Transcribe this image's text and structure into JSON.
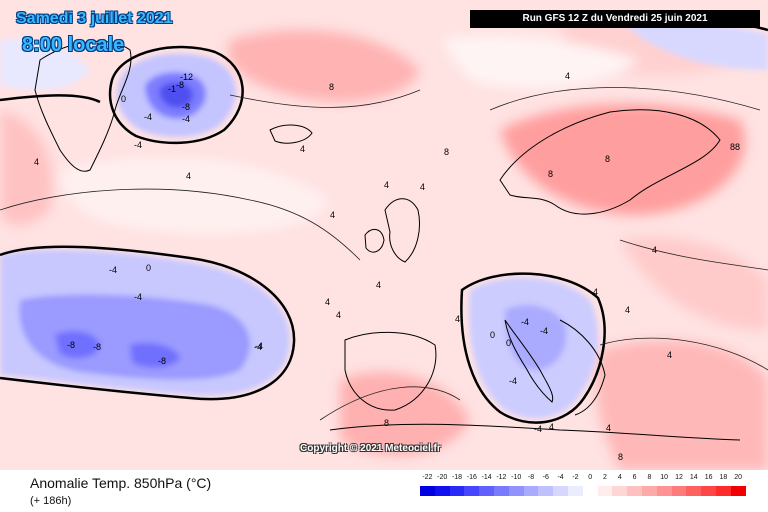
{
  "header": {
    "date": "Samedi 3 juillet 2021",
    "time": "8:00 locale",
    "run": "Run GFS 12 Z du Vendredi 25 juin 2021"
  },
  "footer": {
    "variable": "Anomalie Temp. 850hPa (°C)",
    "lead_time": "(+ 186h)",
    "copyright": "Copyright © 2021 Meteociel.fr"
  },
  "legend": {
    "ticks": [
      "-22",
      "-20",
      "-18",
      "-16",
      "-14",
      "-12",
      "-10",
      "-8",
      "-6",
      "-4",
      "-2",
      "0",
      "2",
      "4",
      "6",
      "8",
      "10",
      "12",
      "14",
      "16",
      "18",
      "20"
    ],
    "colors": [
      "#0000e0",
      "#1010f0",
      "#2a2af8",
      "#4646ff",
      "#6060ff",
      "#7a7aff",
      "#9292ff",
      "#aaaaff",
      "#c0c0ff",
      "#d6d6ff",
      "#ececff",
      "#ffffff",
      "#ffecec",
      "#ffd6d6",
      "#ffc0c0",
      "#ffaaaa",
      "#ff9292",
      "#ff7a7a",
      "#ff6060",
      "#ff4646",
      "#ff2a2a",
      "#f00000"
    ]
  },
  "contour_labels": [
    {
      "text": "-12"
    },
    {
      "text": "-8"
    },
    {
      "text": "-4"
    },
    {
      "text": "-4"
    },
    {
      "text": "-1"
    },
    {
      "text": "-8"
    },
    {
      "text": "0"
    },
    {
      "text": "4"
    },
    {
      "text": "4"
    },
    {
      "text": "4"
    },
    {
      "text": "8"
    },
    {
      "text": "8"
    },
    {
      "text": "-4"
    },
    {
      "text": "4"
    },
    {
      "text": "4"
    },
    {
      "text": "4"
    },
    {
      "text": "-4"
    },
    {
      "text": "-4"
    },
    {
      "text": "0"
    },
    {
      "text": "-4"
    },
    {
      "text": "-8"
    },
    {
      "text": "-8"
    },
    {
      "text": "-8"
    },
    {
      "text": "-4"
    },
    {
      "text": "0"
    },
    {
      "text": "4"
    },
    {
      "text": "4"
    },
    {
      "text": "4"
    },
    {
      "text": "8"
    },
    {
      "text": "8"
    },
    {
      "text": "88"
    },
    {
      "text": "4"
    },
    {
      "text": "-4"
    },
    {
      "text": "-4"
    },
    {
      "text": "-4"
    },
    {
      "text": "0"
    },
    {
      "text": "4"
    },
    {
      "text": "4"
    },
    {
      "text": "-4"
    },
    {
      "text": "4"
    },
    {
      "text": "4"
    },
    {
      "text": "8"
    },
    {
      "text": "8"
    },
    {
      "text": "4"
    },
    {
      "text": "4"
    },
    {
      "text": "4"
    }
  ]
}
